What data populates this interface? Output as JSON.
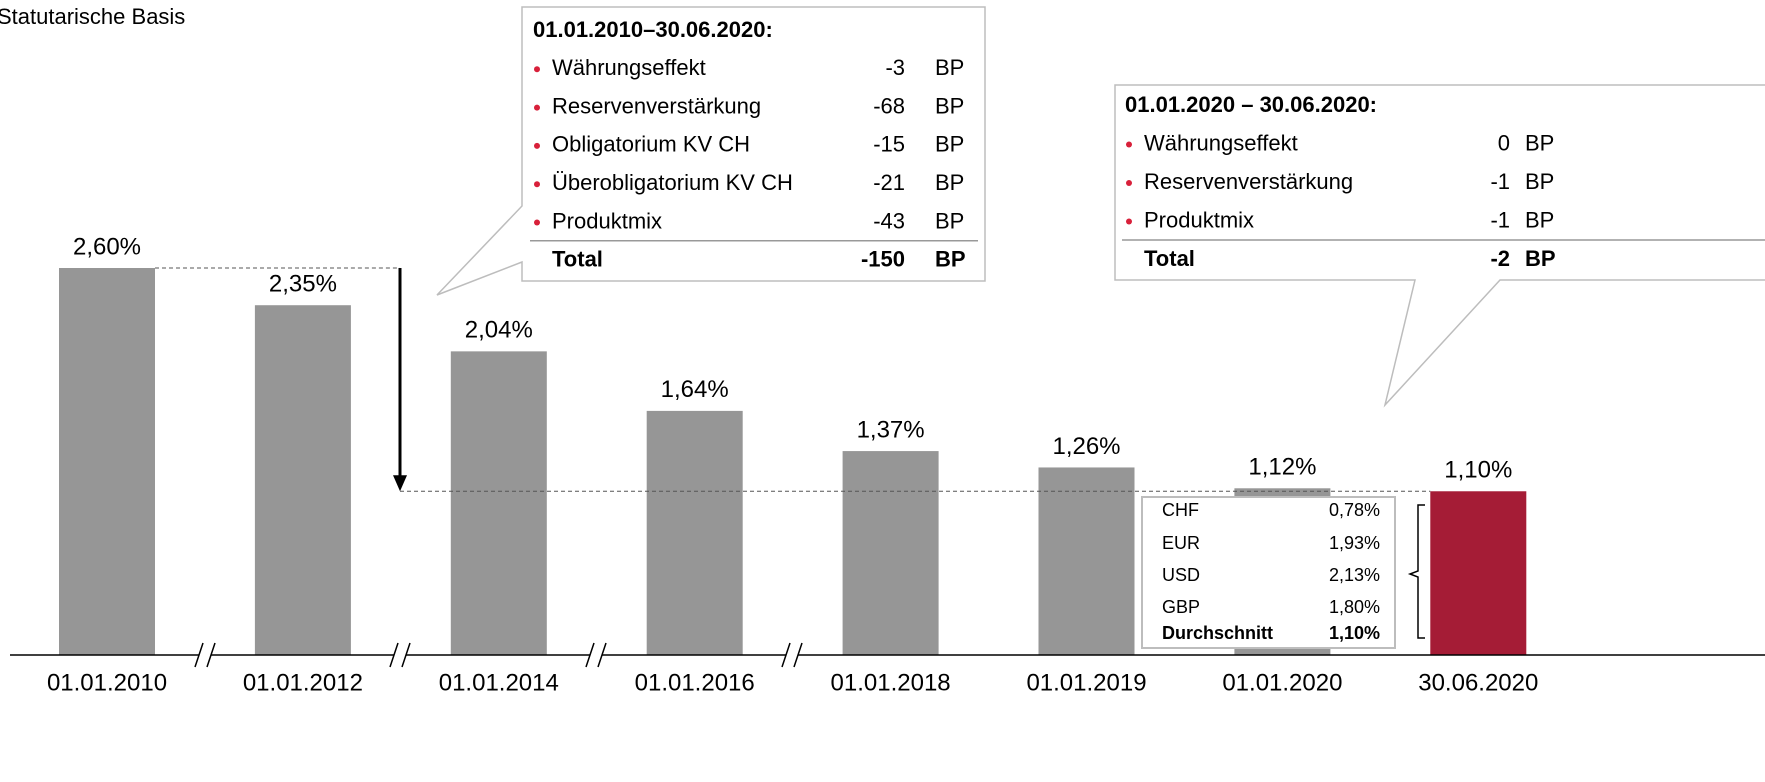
{
  "chart_data": {
    "type": "bar",
    "subtitle": "Statutarische Basis",
    "categories": [
      "01.01.2010",
      "01.01.2012",
      "01.01.2014",
      "01.01.2016",
      "01.01.2018",
      "01.01.2019",
      "01.01.2020",
      "30.06.2020"
    ],
    "values": [
      2.6,
      2.35,
      2.04,
      1.64,
      1.37,
      1.26,
      1.12,
      1.1
    ],
    "value_labels": [
      "2,60%",
      "2,35%",
      "2,04%",
      "1,64%",
      "1,37%",
      "1,26%",
      "1,12%",
      "1,10%"
    ],
    "colors": [
      "#969696",
      "#969696",
      "#969696",
      "#969696",
      "#969696",
      "#969696",
      "#969696",
      "#a51c36"
    ],
    "callouts": [
      {
        "title": "01.01.2010–30.06.2020:",
        "unit": "BP",
        "rows": [
          {
            "label": "Währungseffekt",
            "value": -3
          },
          {
            "label": "Reservenverstärkung",
            "value": -68
          },
          {
            "label": "Obligatorium KV CH",
            "value": -15
          },
          {
            "label": "Überobligatorium KV CH",
            "value": -21
          },
          {
            "label": "Produktmix",
            "value": -43
          }
        ],
        "total": {
          "label": "Total",
          "value": -150
        }
      },
      {
        "title": "01.01.2020 – 30.06.2020:",
        "unit": "BP",
        "rows": [
          {
            "label": "Währungseffekt",
            "value": 0
          },
          {
            "label": "Reservenverstärkung",
            "value": -1
          },
          {
            "label": "Produktmix",
            "value": -1
          }
        ],
        "total": {
          "label": "Total",
          "value": -2
        }
      }
    ],
    "currency_table": [
      {
        "name": "CHF",
        "value": 0.78,
        "label": "0,78%"
      },
      {
        "name": "EUR",
        "value": 1.93,
        "label": "1,93%"
      },
      {
        "name": "USD",
        "value": 2.13,
        "label": "2,13%"
      },
      {
        "name": "GBP",
        "value": 1.8,
        "label": "1,80%"
      },
      {
        "name": "Durchschnitt",
        "value": 1.1,
        "label": "1,10%"
      }
    ]
  }
}
